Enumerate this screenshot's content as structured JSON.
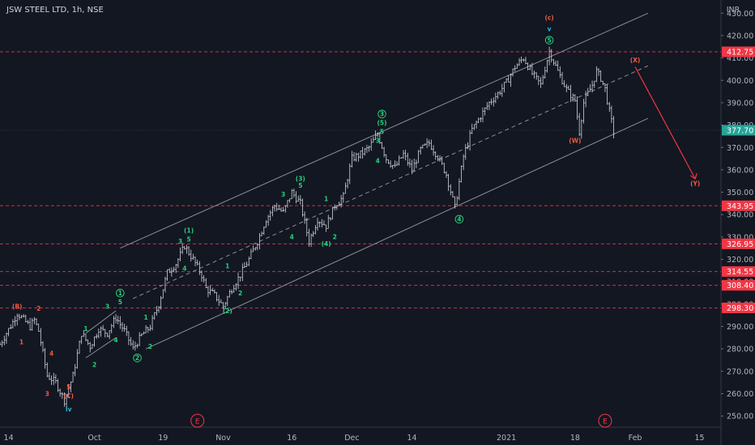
{
  "chart_data": {
    "type": "candlestick",
    "title": "JSW STEEL LTD, 1h, NSE",
    "currency": "INR",
    "yaxis": {
      "min": 245,
      "max": 433,
      "ticks": [
        250,
        260,
        270,
        280,
        290,
        300,
        310,
        320,
        330,
        340,
        350,
        360,
        370,
        380,
        390,
        400,
        410,
        420,
        430
      ],
      "tick_labels": [
        "250.00",
        "260.00",
        "270.00",
        "280.00",
        "290.00",
        "300.00",
        "310.00",
        "320.00",
        "330.00",
        "340.00",
        "350.00",
        "360.00",
        "370.00",
        "380.00",
        "390.00",
        "400.00",
        "410.00",
        "420.00",
        "430.00"
      ]
    },
    "xaxis": {
      "ticks": [
        {
          "label": "14",
          "t": 2
        },
        {
          "label": "Oct",
          "t": 22
        },
        {
          "label": "19",
          "t": 38
        },
        {
          "label": "Nov",
          "t": 52
        },
        {
          "label": "16",
          "t": 68
        },
        {
          "label": "Dec",
          "t": 82
        },
        {
          "label": "14",
          "t": 96
        },
        {
          "label": "2021",
          "t": 118
        },
        {
          "label": "18",
          "t": 134
        },
        {
          "label": "Feb",
          "t": 148
        },
        {
          "label": "15",
          "t": 163
        }
      ]
    },
    "last_price": {
      "label": "377.70",
      "value": 377.7,
      "color": "#26a69a"
    },
    "levels": [
      {
        "label": "412.75",
        "value": 412.75
      },
      {
        "label": "343.95",
        "value": 343.95
      },
      {
        "label": "326.95",
        "value": 326.95
      },
      {
        "label": "314.55",
        "value": 314.55
      },
      {
        "label": "308.40",
        "value": 308.4
      },
      {
        "label": "298.30",
        "value": 298.3
      }
    ],
    "path": [
      [
        0,
        282
      ],
      [
        3,
        292
      ],
      [
        4,
        296
      ],
      [
        7,
        290
      ],
      [
        8,
        293
      ],
      [
        9,
        288
      ],
      [
        11,
        268
      ],
      [
        13,
        265
      ],
      [
        15,
        257
      ],
      [
        17,
        268
      ],
      [
        19,
        287
      ],
      [
        21,
        281
      ],
      [
        23,
        289
      ],
      [
        25,
        287
      ],
      [
        27,
        294
      ],
      [
        29,
        288
      ],
      [
        31,
        280
      ],
      [
        33,
        286
      ],
      [
        35,
        290
      ],
      [
        37,
        300
      ],
      [
        39,
        314
      ],
      [
        41,
        318
      ],
      [
        43,
        326
      ],
      [
        45,
        320
      ],
      [
        47,
        313
      ],
      [
        48,
        307
      ],
      [
        50,
        304
      ],
      [
        52,
        299
      ],
      [
        54,
        307
      ],
      [
        56,
        313
      ],
      [
        58,
        320
      ],
      [
        60,
        328
      ],
      [
        62,
        338
      ],
      [
        64,
        344
      ],
      [
        66,
        341
      ],
      [
        68,
        350
      ],
      [
        70,
        345
      ],
      [
        72,
        328
      ],
      [
        74,
        338
      ],
      [
        76,
        335
      ],
      [
        78,
        344
      ],
      [
        80,
        348
      ],
      [
        82,
        365
      ],
      [
        84,
        367
      ],
      [
        86,
        370
      ],
      [
        88,
        376
      ],
      [
        90,
        365
      ],
      [
        92,
        361
      ],
      [
        94,
        367
      ],
      [
        96,
        360
      ],
      [
        98,
        369
      ],
      [
        100,
        372
      ],
      [
        102,
        366
      ],
      [
        104,
        358
      ],
      [
        106,
        343
      ],
      [
        108,
        366
      ],
      [
        110,
        378
      ],
      [
        112,
        384
      ],
      [
        114,
        390
      ],
      [
        116,
        394
      ],
      [
        118,
        399
      ],
      [
        120,
        406
      ],
      [
        122,
        410
      ],
      [
        124,
        403
      ],
      [
        126,
        398
      ],
      [
        128,
        413
      ],
      [
        130,
        404
      ],
      [
        132,
        396
      ],
      [
        134,
        391
      ],
      [
        135,
        377
      ],
      [
        136,
        390
      ],
      [
        138,
        398
      ],
      [
        139,
        404
      ],
      [
        140,
        401
      ],
      [
        141,
        396
      ],
      [
        142,
        386
      ],
      [
        143,
        377
      ]
    ],
    "channel": {
      "upper": [
        [
          28,
          325
        ],
        [
          151,
          430
        ]
      ],
      "lower": [
        [
          34,
          280
        ],
        [
          151,
          383
        ]
      ],
      "mid": [
        [
          31,
          302.5
        ],
        [
          151,
          406.5
        ]
      ]
    },
    "inner_channel": {
      "upper": [
        [
          20,
          287
        ],
        [
          27,
          297
        ]
      ],
      "lower": [
        [
          20,
          276
        ],
        [
          27,
          285
        ]
      ]
    },
    "projection": {
      "from": [
        148,
        406
      ],
      "to": [
        162,
        356
      ],
      "color": "#f23645"
    },
    "wave_labels": [
      {
        "text": "(B)",
        "t": 4,
        "v": 298,
        "color": "r"
      },
      {
        "text": "1",
        "t": 5,
        "v": 282,
        "color": "r"
      },
      {
        "text": "2",
        "t": 9,
        "v": 297,
        "color": "r"
      },
      {
        "text": "4",
        "t": 12,
        "v": 277,
        "color": "r"
      },
      {
        "text": "3",
        "t": 11,
        "v": 259,
        "color": "r"
      },
      {
        "text": "5",
        "t": 16,
        "v": 262,
        "color": "r"
      },
      {
        "text": "(C)",
        "t": 16,
        "v": 258,
        "color": "r"
      },
      {
        "text": "iv",
        "t": 16,
        "v": 252,
        "color": "c"
      },
      {
        "text": "1",
        "t": 20,
        "v": 288,
        "color": "g"
      },
      {
        "text": "2",
        "t": 22,
        "v": 272,
        "color": "g"
      },
      {
        "text": "3",
        "t": 25,
        "v": 298,
        "color": "g"
      },
      {
        "text": "4",
        "t": 27,
        "v": 283,
        "color": "g"
      },
      {
        "text": "5",
        "t": 28,
        "v": 300,
        "color": "g"
      },
      {
        "text": "1",
        "t": 28,
        "v": 304,
        "color": "g",
        "circled": true
      },
      {
        "text": "1",
        "t": 34,
        "v": 293,
        "color": "g"
      },
      {
        "text": "2",
        "t": 35,
        "v": 280,
        "color": "g"
      },
      {
        "text": "2",
        "t": 32,
        "v": 275,
        "color": "g",
        "circled": true
      },
      {
        "text": "3",
        "t": 42,
        "v": 327,
        "color": "g"
      },
      {
        "text": "4",
        "t": 43,
        "v": 315,
        "color": "g"
      },
      {
        "text": "5",
        "t": 44,
        "v": 328,
        "color": "g"
      },
      {
        "text": "(1)",
        "t": 44,
        "v": 332,
        "color": "g"
      },
      {
        "text": "1",
        "t": 53,
        "v": 316,
        "color": "g"
      },
      {
        "text": "2",
        "t": 56,
        "v": 304,
        "color": "g"
      },
      {
        "text": "(2)",
        "t": 53,
        "v": 296,
        "color": "g"
      },
      {
        "text": "3",
        "t": 66,
        "v": 348,
        "color": "g"
      },
      {
        "text": "4",
        "t": 68,
        "v": 329,
        "color": "g"
      },
      {
        "text": "5",
        "t": 70,
        "v": 352,
        "color": "g"
      },
      {
        "text": "(3)",
        "t": 70,
        "v": 355,
        "color": "g"
      },
      {
        "text": "1",
        "t": 76,
        "v": 346,
        "color": "g"
      },
      {
        "text": "2",
        "t": 78,
        "v": 329,
        "color": "g"
      },
      {
        "text": "(4)",
        "t": 76,
        "v": 326,
        "color": "g"
      },
      {
        "text": "3",
        "t": 88,
        "v": 372,
        "color": "g"
      },
      {
        "text": "5",
        "t": 89,
        "v": 376,
        "color": "g"
      },
      {
        "text": "(5)",
        "t": 89,
        "v": 380,
        "color": "g"
      },
      {
        "text": "3",
        "t": 89,
        "v": 384,
        "color": "g",
        "circled": true
      },
      {
        "text": "4",
        "t": 88,
        "v": 363,
        "color": "g"
      },
      {
        "text": "4",
        "t": 107,
        "v": 337,
        "color": "g",
        "circled": true
      },
      {
        "text": "5",
        "t": 128,
        "v": 417,
        "color": "g",
        "circled": true
      },
      {
        "text": "v",
        "t": 128,
        "v": 422,
        "color": "c"
      },
      {
        "text": "(c)",
        "t": 128,
        "v": 427,
        "color": "r"
      },
      {
        "text": "(W)",
        "t": 134,
        "v": 372,
        "color": "r"
      },
      {
        "text": "(X)",
        "t": 148,
        "v": 408,
        "color": "r"
      },
      {
        "text": "(Y)",
        "t": 162,
        "v": 353,
        "color": "r"
      }
    ],
    "event_markers": [
      {
        "text": "E",
        "t": 46
      },
      {
        "text": "E",
        "t": 141
      }
    ],
    "grid": false,
    "legend": "none"
  }
}
